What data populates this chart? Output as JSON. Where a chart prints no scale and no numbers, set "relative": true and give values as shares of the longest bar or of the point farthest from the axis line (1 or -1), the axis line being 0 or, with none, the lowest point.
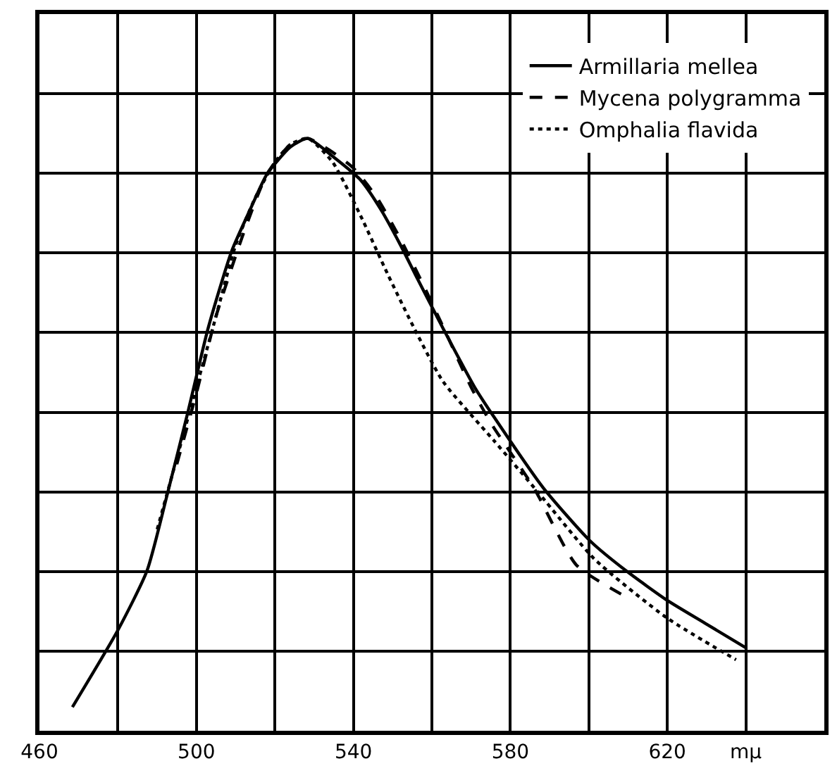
{
  "chart_data": {
    "type": "line",
    "relative": true,
    "grid": true,
    "legend": "top right",
    "xlim": [
      460,
      660
    ],
    "xticks": [
      460,
      {
        "value": 480,
        "label": null
      },
      500,
      {
        "value": 520,
        "label": null
      },
      540,
      {
        "value": 560,
        "label": null
      },
      580,
      {
        "value": 600,
        "label": null
      },
      620,
      {
        "value": 640,
        "label": "mμ"
      }
    ],
    "series": [
      {
        "name": "Armillaria mellea",
        "color": "#000000",
        "line_style": "solid",
        "x": [
          468.4,
          480,
          487.4,
          492.6,
          497.9,
          503,
          509,
          513.7,
          518,
          524,
          528.4,
          534.7,
          541.8,
          547,
          552,
          555.8,
          562.8,
          570.9,
          575.8,
          588.4,
          600.4,
          609.5,
          620,
          630,
          640
        ],
        "values": [
          0.04,
          0.17,
          0.27,
          0.4,
          0.54,
          0.68,
          0.81,
          0.88,
          0.94,
          0.986,
          1.0,
          0.97,
          0.93,
          0.88,
          0.82,
          0.77,
          0.68,
          0.58,
          0.53,
          0.41,
          0.32,
          0.27,
          0.22,
          0.18,
          0.14
        ]
      },
      {
        "name": "Mycena polygramma",
        "color": "#000000",
        "line_style": "dashed",
        "x": [
          495,
          500,
          505,
          512,
          518,
          524,
          528.4,
          534,
          540,
          546,
          552,
          558,
          563,
          570,
          575,
          586,
          596.8,
          608.4
        ],
        "values": [
          0.45,
          0.57,
          0.7,
          0.84,
          0.94,
          0.99,
          1.0,
          0.98,
          0.95,
          0.9,
          0.83,
          0.75,
          0.68,
          0.58,
          0.52,
          0.41,
          0.28,
          0.23
        ]
      },
      {
        "name": "Omphalia flavida",
        "color": "#000000",
        "line_style": "dotted",
        "x": [
          490,
          495,
          500,
          505,
          510,
          515,
          520,
          524,
          528.4,
          534.7,
          541.8,
          548.8,
          554.7,
          562.8,
          575.8,
          587.4,
          601.4,
          620,
          637.5
        ],
        "values": [
          0.34,
          0.46,
          0.58,
          0.7,
          0.82,
          0.9,
          0.96,
          0.99,
          1.0,
          0.96,
          0.87,
          0.77,
          0.69,
          0.59,
          0.49,
          0.4,
          0.29,
          0.19,
          0.12
        ]
      }
    ]
  }
}
